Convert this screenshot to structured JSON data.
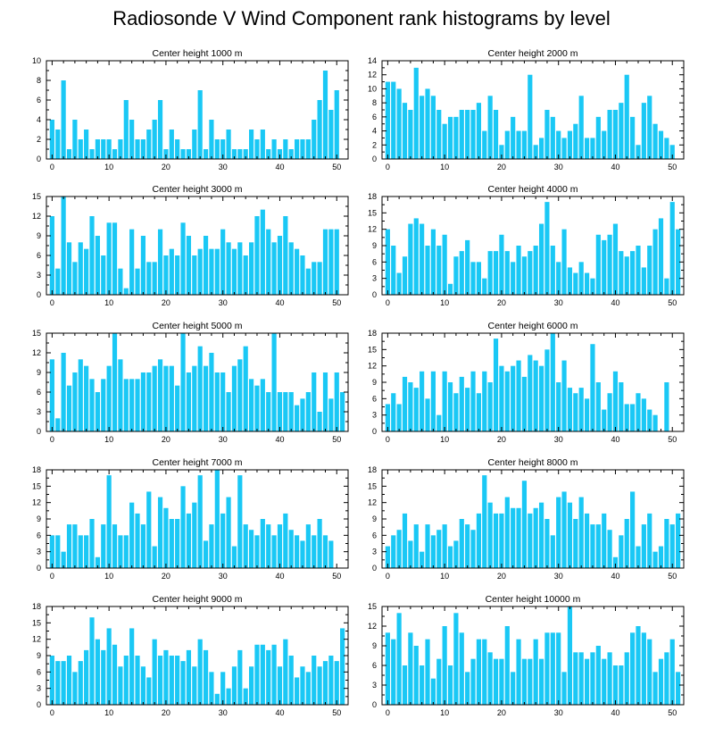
{
  "title": "Radiosonde V Wind Component rank histograms by level",
  "colors": {
    "bar": "#1ac8f5",
    "bar_edge": "#ffffff",
    "axis": "#000000",
    "background": "#ffffff"
  },
  "chart_data": [
    {
      "type": "bar",
      "title": "Center height 1000 m",
      "xlabel": "",
      "ylabel": "",
      "xlim": [
        -1,
        52
      ],
      "ylim": [
        0,
        10
      ],
      "xticks": [
        0,
        10,
        20,
        30,
        40,
        50
      ],
      "yticks": [
        0,
        2,
        4,
        6,
        8,
        10
      ],
      "x_start": 0,
      "values": [
        4,
        3,
        8,
        1,
        4,
        2,
        3,
        1,
        2,
        2,
        2,
        1,
        2,
        6,
        4,
        2,
        2,
        3,
        4,
        6,
        1,
        3,
        2,
        1,
        1,
        3,
        7,
        1,
        4,
        2,
        2,
        3,
        1,
        1,
        1,
        3,
        2,
        3,
        1,
        2,
        1,
        2,
        1,
        2,
        2,
        2,
        4,
        6,
        9,
        5,
        7
      ]
    },
    {
      "type": "bar",
      "title": "Center height 2000 m",
      "xlabel": "",
      "ylabel": "",
      "xlim": [
        -1,
        52
      ],
      "ylim": [
        0,
        14
      ],
      "xticks": [
        0,
        10,
        20,
        30,
        40,
        50
      ],
      "yticks": [
        0,
        2,
        4,
        6,
        8,
        10,
        12,
        14
      ],
      "x_start": 0,
      "values": [
        11,
        11,
        10,
        8,
        7,
        13,
        9,
        10,
        9,
        7,
        5,
        6,
        6,
        7,
        7,
        7,
        8,
        4,
        9,
        7,
        2,
        4,
        6,
        4,
        4,
        12,
        2,
        3,
        7,
        6,
        4,
        3,
        4,
        5,
        9,
        3,
        3,
        6,
        4,
        7,
        7,
        8,
        12,
        6,
        2,
        8,
        9,
        5,
        4,
        3,
        2
      ]
    },
    {
      "type": "bar",
      "title": "Center height 3000 m",
      "xlabel": "",
      "ylabel": "",
      "xlim": [
        -1,
        52
      ],
      "ylim": [
        0,
        15
      ],
      "xticks": [
        0,
        10,
        20,
        30,
        40,
        50
      ],
      "yticks": [
        0,
        3,
        6,
        9,
        12,
        15
      ],
      "x_start": 0,
      "values": [
        12,
        4,
        15,
        8,
        5,
        8,
        7,
        12,
        9,
        6,
        11,
        11,
        4,
        1,
        10,
        4,
        9,
        5,
        5,
        10,
        6,
        7,
        6,
        11,
        9,
        6,
        7,
        9,
        7,
        7,
        10,
        8,
        7,
        8,
        6,
        8,
        12,
        13,
        10,
        8,
        9,
        12,
        8,
        7,
        6,
        4,
        5,
        5,
        10,
        10,
        10
      ]
    },
    {
      "type": "bar",
      "title": "Center height 4000 m",
      "xlabel": "",
      "ylabel": "",
      "xlim": [
        -1,
        52
      ],
      "ylim": [
        0,
        18
      ],
      "xticks": [
        0,
        10,
        20,
        30,
        40,
        50
      ],
      "yticks": [
        0,
        3,
        6,
        9,
        12,
        15,
        18
      ],
      "x_start": 0,
      "values": [
        12,
        9,
        4,
        7,
        13,
        14,
        13,
        9,
        12,
        9,
        11,
        2,
        7,
        8,
        10,
        6,
        6,
        3,
        8,
        8,
        11,
        8,
        6,
        9,
        7,
        8,
        9,
        13,
        17,
        9,
        6,
        12,
        5,
        4,
        6,
        4,
        3,
        11,
        10,
        11,
        13,
        8,
        7,
        8,
        9,
        5,
        9,
        12,
        14,
        3,
        17,
        12
      ]
    },
    {
      "type": "bar",
      "title": "Center height 5000 m",
      "xlabel": "",
      "ylabel": "",
      "xlim": [
        -1,
        52
      ],
      "ylim": [
        0,
        15
      ],
      "xticks": [
        0,
        10,
        20,
        30,
        40,
        50
      ],
      "yticks": [
        0,
        3,
        6,
        9,
        12,
        15
      ],
      "x_start": 0,
      "values": [
        11,
        2,
        12,
        7,
        9,
        11,
        10,
        8,
        6,
        8,
        10,
        15,
        11,
        8,
        8,
        8,
        9,
        9,
        10,
        11,
        10,
        10,
        7,
        15,
        9,
        10,
        13,
        10,
        12,
        9,
        9,
        6,
        10,
        11,
        13,
        8,
        7,
        8,
        6,
        15,
        6,
        6,
        6,
        4,
        5,
        6,
        9,
        3,
        9,
        5,
        9,
        6
      ]
    },
    {
      "type": "bar",
      "title": "Center height 6000 m",
      "xlabel": "",
      "ylabel": "",
      "xlim": [
        -1,
        52
      ],
      "ylim": [
        0,
        18
      ],
      "xticks": [
        0,
        10,
        20,
        30,
        40,
        50
      ],
      "yticks": [
        0,
        3,
        6,
        9,
        12,
        15,
        18
      ],
      "x_start": 0,
      "values": [
        5,
        7,
        5,
        10,
        9,
        8,
        11,
        6,
        11,
        3,
        11,
        9,
        7,
        10,
        8,
        11,
        7,
        11,
        9,
        17,
        12,
        11,
        12,
        13,
        10,
        14,
        13,
        12,
        15,
        18,
        9,
        13,
        8,
        7,
        8,
        6,
        16,
        9,
        4,
        7,
        11,
        9,
        5,
        5,
        7,
        6,
        4,
        3,
        0,
        9
      ]
    },
    {
      "type": "bar",
      "title": "Center height 7000 m",
      "xlabel": "",
      "ylabel": "",
      "xlim": [
        -1,
        52
      ],
      "ylim": [
        0,
        18
      ],
      "xticks": [
        0,
        10,
        20,
        30,
        40,
        50
      ],
      "yticks": [
        0,
        3,
        6,
        9,
        12,
        15,
        18
      ],
      "x_start": 0,
      "values": [
        6,
        6,
        3,
        8,
        8,
        6,
        6,
        9,
        2,
        8,
        17,
        8,
        6,
        6,
        12,
        10,
        8,
        14,
        4,
        13,
        11,
        9,
        9,
        15,
        10,
        12,
        17,
        5,
        8,
        18,
        10,
        13,
        4,
        17,
        8,
        7,
        6,
        9,
        8,
        6,
        8,
        10,
        7,
        6,
        5,
        8,
        6,
        9,
        6,
        5
      ]
    },
    {
      "type": "bar",
      "title": "Center height 8000 m",
      "xlabel": "",
      "ylabel": "",
      "xlim": [
        -1,
        52
      ],
      "ylim": [
        0,
        18
      ],
      "xticks": [
        0,
        10,
        20,
        30,
        40,
        50
      ],
      "yticks": [
        0,
        3,
        6,
        9,
        12,
        15,
        18
      ],
      "x_start": 0,
      "values": [
        4,
        6,
        7,
        10,
        5,
        8,
        3,
        8,
        6,
        7,
        8,
        4,
        5,
        9,
        8,
        7,
        10,
        17,
        12,
        10,
        10,
        13,
        11,
        11,
        16,
        10,
        11,
        12,
        9,
        6,
        13,
        14,
        12,
        9,
        13,
        10,
        8,
        8,
        10,
        7,
        2,
        6,
        9,
        14,
        4,
        8,
        10,
        3,
        4,
        9,
        8,
        10
      ]
    },
    {
      "type": "bar",
      "title": "Center height 9000 m",
      "xlabel": "",
      "ylabel": "",
      "xlim": [
        -1,
        52
      ],
      "ylim": [
        0,
        18
      ],
      "xticks": [
        0,
        10,
        20,
        30,
        40,
        50
      ],
      "yticks": [
        0,
        3,
        6,
        9,
        12,
        15,
        18
      ],
      "x_start": 0,
      "values": [
        9,
        8,
        8,
        9,
        6,
        8,
        10,
        16,
        12,
        10,
        14,
        11,
        7,
        9,
        14,
        9,
        7,
        5,
        12,
        9,
        10,
        9,
        9,
        8,
        10,
        7,
        12,
        10,
        6,
        2,
        6,
        3,
        7,
        10,
        3,
        7,
        11,
        11,
        10,
        11,
        7,
        12,
        9,
        5,
        7,
        6,
        9,
        7,
        8,
        9,
        8,
        14
      ]
    },
    {
      "type": "bar",
      "title": "Center height 10000 m",
      "xlabel": "",
      "ylabel": "",
      "xlim": [
        -1,
        52
      ],
      "ylim": [
        0,
        15
      ],
      "xticks": [
        0,
        10,
        20,
        30,
        40,
        50
      ],
      "yticks": [
        0,
        3,
        6,
        9,
        12,
        15
      ],
      "x_start": 0,
      "values": [
        11,
        10,
        14,
        6,
        11,
        9,
        6,
        10,
        4,
        7,
        12,
        6,
        14,
        11,
        5,
        7,
        10,
        10,
        8,
        7,
        7,
        12,
        5,
        10,
        7,
        7,
        10,
        7,
        11,
        11,
        11,
        5,
        15,
        8,
        8,
        7,
        8,
        9,
        7,
        8,
        6,
        6,
        8,
        11,
        12,
        11,
        10,
        5,
        7,
        8,
        10,
        5
      ]
    }
  ]
}
